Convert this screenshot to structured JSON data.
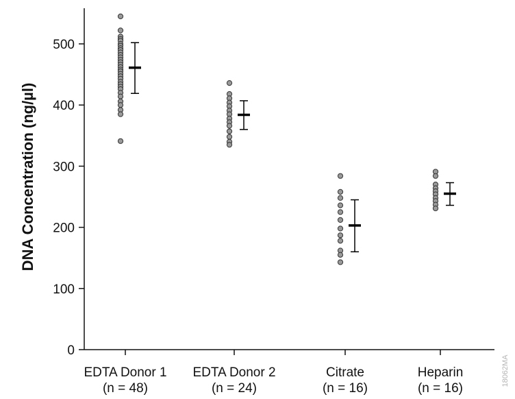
{
  "chart_data": {
    "type": "scatter",
    "title": "",
    "ylabel": "DNA Concentration (ng/µl)",
    "xlabel": "",
    "ylim": [
      0,
      550
    ],
    "yticks": [
      0,
      100,
      200,
      300,
      400,
      500
    ],
    "grid": false,
    "legend": "none",
    "point_color": "#9a9a9a",
    "mark_color": "#000000",
    "categories": [
      {
        "label": "EDTA Donor 1",
        "n_label": "(n = 48)",
        "points": [
          545,
          522,
          512,
          508,
          505,
          500,
          497,
          493,
          490,
          486,
          482,
          478,
          474,
          470,
          466,
          462,
          458,
          455,
          451,
          447,
          443,
          438,
          434,
          430,
          426,
          420,
          414,
          406,
          400,
          392,
          385,
          341
        ],
        "mean": 461,
        "sd_low": 419,
        "sd_high": 502
      },
      {
        "label": "EDTA Donor 2",
        "n_label": "(n = 24)",
        "points": [
          436,
          418,
          411,
          404,
          398,
          391,
          385,
          378,
          372,
          366,
          357,
          348,
          340,
          335
        ],
        "mean": 384,
        "sd_low": 360,
        "sd_high": 407
      },
      {
        "label": "Citrate",
        "n_label": "(n = 16)",
        "points": [
          284,
          258,
          248,
          236,
          225,
          212,
          198,
          187,
          178,
          162,
          155,
          143
        ],
        "mean": 203,
        "sd_low": 160,
        "sd_high": 245
      },
      {
        "label": "Heparin",
        "n_label": "(n = 16)",
        "points": [
          291,
          284,
          270,
          264,
          259,
          254,
          248,
          243,
          237,
          231
        ],
        "mean": 255,
        "sd_low": 236,
        "sd_high": 273
      }
    ]
  },
  "figure_code": "18062MA"
}
